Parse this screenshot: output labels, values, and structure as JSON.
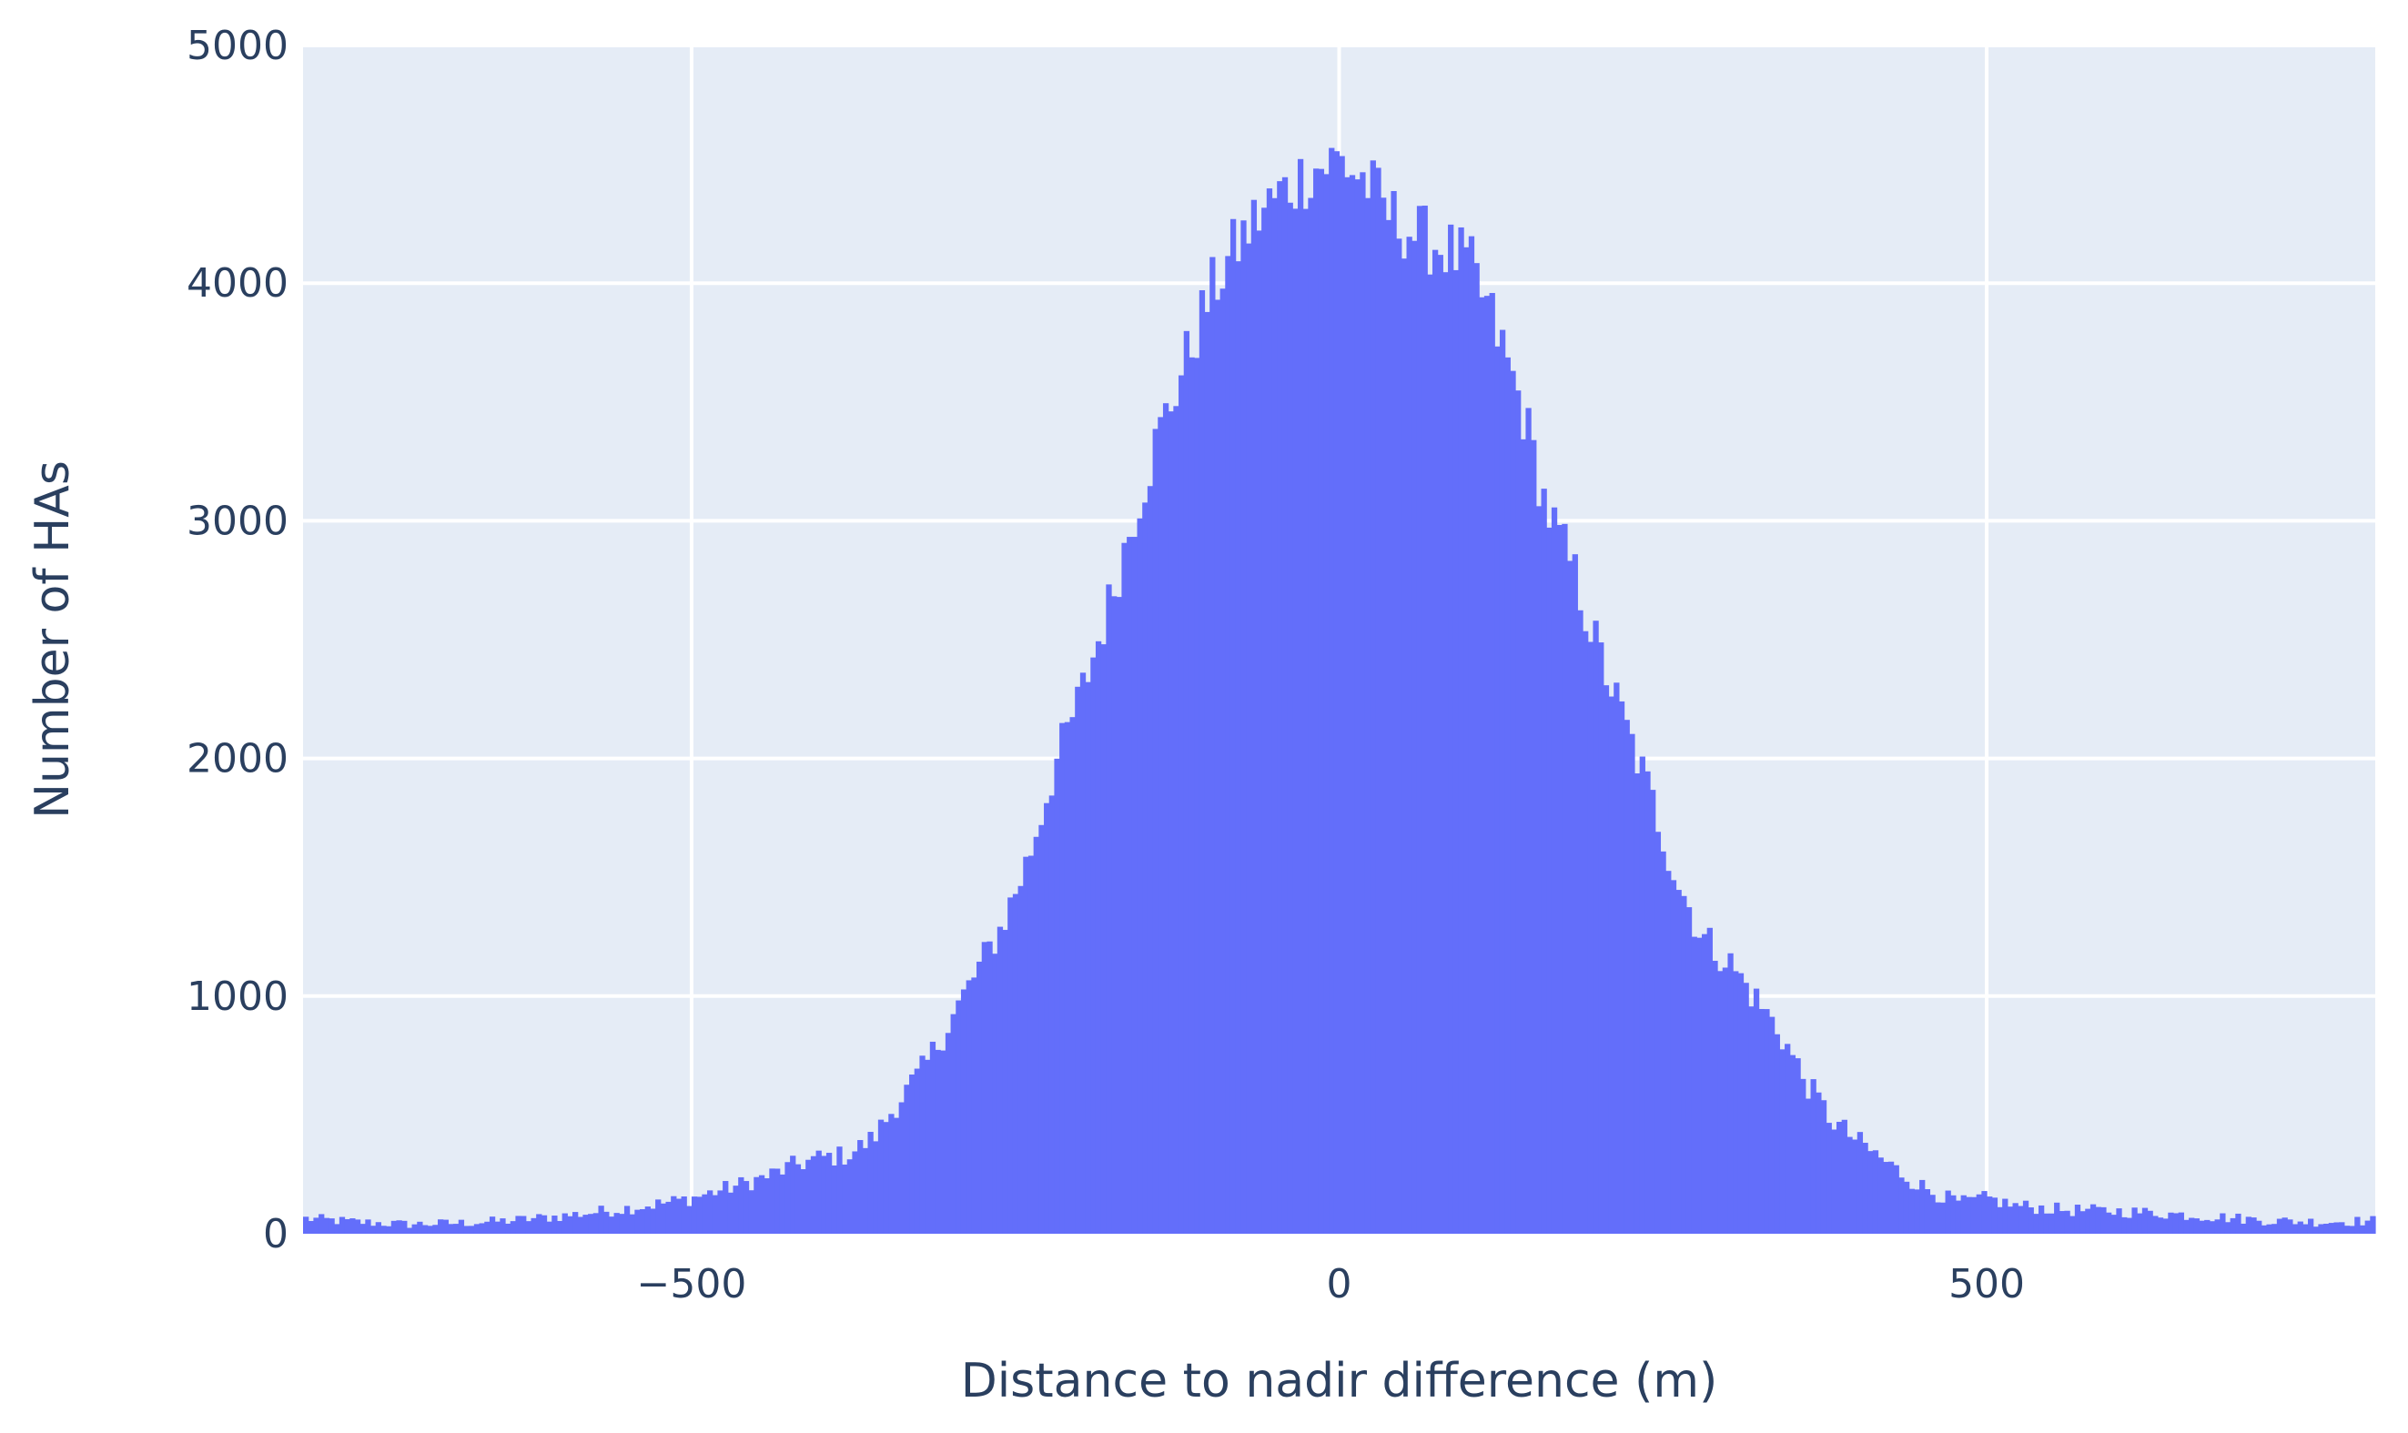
{
  "chart_data": {
    "type": "bar",
    "subtype": "histogram",
    "title": "",
    "xlabel": "Distance to nadir difference (m)",
    "ylabel": "Number of HAs",
    "xlim": [
      -800,
      800
    ],
    "ylim": [
      0,
      5000
    ],
    "x_ticks": [
      {
        "value": -500,
        "label": "−500"
      },
      {
        "value": 0,
        "label": "0"
      },
      {
        "value": 500,
        "label": "500"
      }
    ],
    "y_ticks": [
      {
        "value": 0,
        "label": "0"
      },
      {
        "value": 1000,
        "label": "1000"
      },
      {
        "value": 2000,
        "label": "2000"
      },
      {
        "value": 3000,
        "label": "3000"
      },
      {
        "value": 4000,
        "label": "4000"
      },
      {
        "value": 5000,
        "label": "5000"
      }
    ],
    "grid": true,
    "legend": "none",
    "bin_start": -800,
    "bin_width": 4,
    "anchors": [
      [
        -800,
        65
      ],
      [
        -760,
        50
      ],
      [
        -720,
        40
      ],
      [
        -680,
        45
      ],
      [
        -640,
        55
      ],
      [
        -600,
        75
      ],
      [
        -560,
        100
      ],
      [
        -520,
        130
      ],
      [
        -500,
        150
      ],
      [
        -480,
        180
      ],
      [
        -460,
        210
      ],
      [
        -440,
        245
      ],
      [
        -420,
        290
      ],
      [
        -400,
        320
      ],
      [
        -380,
        330
      ],
      [
        -360,
        400
      ],
      [
        -340,
        560
      ],
      [
        -320,
        700
      ],
      [
        -300,
        900
      ],
      [
        -280,
        1100
      ],
      [
        -260,
        1300
      ],
      [
        -240,
        1580
      ],
      [
        -220,
        1960
      ],
      [
        -200,
        2260
      ],
      [
        -180,
        2600
      ],
      [
        -160,
        3000
      ],
      [
        -140,
        3350
      ],
      [
        -120,
        3650
      ],
      [
        -100,
        3950
      ],
      [
        -80,
        4150
      ],
      [
        -60,
        4300
      ],
      [
        -40,
        4400
      ],
      [
        -20,
        4480
      ],
      [
        0,
        4520
      ],
      [
        20,
        4430
      ],
      [
        40,
        4280
      ],
      [
        60,
        4200
      ],
      [
        80,
        4150
      ],
      [
        100,
        4080
      ],
      [
        120,
        3820
      ],
      [
        140,
        3500
      ],
      [
        160,
        3050
      ],
      [
        180,
        2800
      ],
      [
        200,
        2450
      ],
      [
        220,
        2150
      ],
      [
        240,
        1850
      ],
      [
        260,
        1500
      ],
      [
        280,
        1250
      ],
      [
        300,
        1150
      ],
      [
        320,
        1000
      ],
      [
        340,
        850
      ],
      [
        360,
        640
      ],
      [
        380,
        480
      ],
      [
        400,
        390
      ],
      [
        420,
        310
      ],
      [
        440,
        230
      ],
      [
        460,
        170
      ],
      [
        480,
        130
      ],
      [
        500,
        150
      ],
      [
        520,
        120
      ],
      [
        560,
        100
      ],
      [
        600,
        95
      ],
      [
        640,
        85
      ],
      [
        680,
        70
      ],
      [
        720,
        55
      ],
      [
        760,
        50
      ],
      [
        800,
        55
      ]
    ],
    "series": [
      {
        "color": "#636efa"
      }
    ]
  },
  "colors": {
    "plot_background": "#e5ecf6",
    "gridline": "#ffffff",
    "bar": "#636efa",
    "text": "#2a3f5f"
  }
}
